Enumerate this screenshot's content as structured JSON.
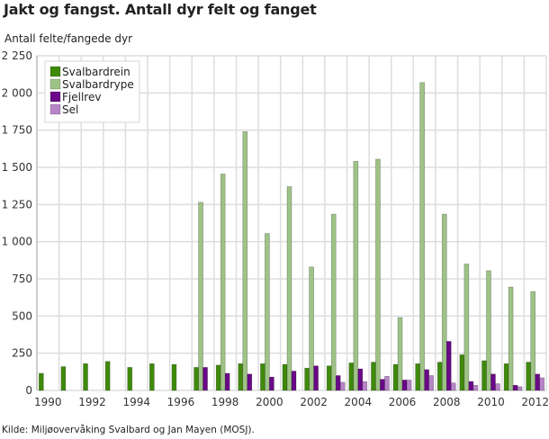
{
  "header": {
    "title": "Jakt og fangst. Antall dyr felt og fanget",
    "y_axis_label": "Antall felte/fangede dyr"
  },
  "footer": {
    "source": "Kilde: Miljøovervåking Svalbard og Jan Mayen (MOSJ)."
  },
  "colors": {
    "Svalbardrein": "#3f8a0a",
    "Svalbardrype": "#9ec386",
    "Fjellrev": "#6a0888",
    "Sel": "#b784c8",
    "grid": "#dddddd"
  },
  "chart_data": {
    "type": "bar",
    "title": "Jakt og fangst. Antall dyr felt og fanget",
    "xlabel": "",
    "ylabel": "Antall felte/fangede dyr",
    "ylim": [
      0,
      2250
    ],
    "yticks": [
      0,
      250,
      500,
      750,
      1000,
      1250,
      1500,
      1750,
      2000,
      2250
    ],
    "ytick_labels": [
      "0",
      "250",
      "500",
      "750",
      "1 000",
      "1 250",
      "1 500",
      "1 750",
      "2 000",
      "2 250"
    ],
    "xtick_labels": [
      "1990",
      "1992",
      "1994",
      "1996",
      "1998",
      "2000",
      "2002",
      "2004",
      "2006",
      "2008",
      "2010",
      "2012"
    ],
    "grid": true,
    "legend_position": "top-left inside",
    "categories": [
      "1990",
      "1991",
      "1992",
      "1993",
      "1994",
      "1995",
      "1996",
      "1997",
      "1998",
      "1999",
      "2000",
      "2001",
      "2002",
      "2003",
      "2004",
      "2005",
      "2006",
      "2007",
      "2008",
      "2009",
      "2010",
      "2011",
      "2012"
    ],
    "series": [
      {
        "name": "Svalbardrein",
        "values": [
          115,
          160,
          180,
          195,
          155,
          180,
          175,
          155,
          170,
          180,
          180,
          175,
          150,
          165,
          185,
          190,
          175,
          180,
          190,
          240,
          200,
          180,
          190
        ]
      },
      {
        "name": "Svalbardrype",
        "values": [
          0,
          0,
          0,
          0,
          0,
          0,
          0,
          1265,
          1455,
          1740,
          1055,
          1370,
          830,
          1185,
          1540,
          1555,
          490,
          2070,
          1185,
          850,
          805,
          695,
          665
        ]
      },
      {
        "name": "Fjellrev",
        "values": [
          0,
          0,
          0,
          0,
          0,
          0,
          0,
          155,
          115,
          110,
          90,
          130,
          165,
          100,
          145,
          75,
          70,
          140,
          330,
          60,
          110,
          35,
          110
        ]
      },
      {
        "name": "Sel",
        "values": [
          0,
          0,
          0,
          0,
          0,
          0,
          0,
          0,
          0,
          0,
          0,
          0,
          0,
          55,
          60,
          95,
          70,
          100,
          50,
          35,
          45,
          25,
          85
        ]
      }
    ]
  }
}
